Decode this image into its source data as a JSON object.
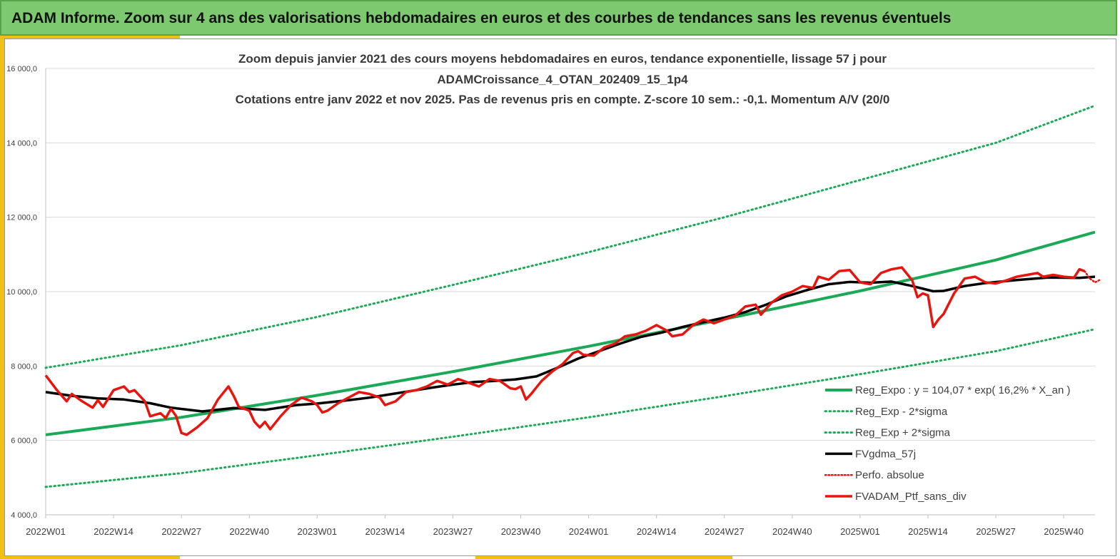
{
  "header": {
    "title": "ADAM Informe. Zoom sur 4 ans des valorisations hebdomadaires en euros et des courbes de tendances sans les revenus éventuels"
  },
  "chart_data": {
    "type": "line",
    "title_lines": [
      "Zoom depuis janvier 2021 des cours moyens hebdomadaires  en euros, tendance exponentielle, lissage 57 j pour",
      "ADAMCroissance_4_OTAN_202409_15_1p4",
      "Cotations  entre janv 2022 et nov 2025. Pas de revenus pris en compte. Z-score 10 sem.: -0,1. Momentum A/V (20/0"
    ],
    "x_tick_labels": [
      "2022W01",
      "2022W14",
      "2022W27",
      "2022W40",
      "2023W01",
      "2023W14",
      "2023W27",
      "2023W40",
      "2024W01",
      "2024W14",
      "2024W27",
      "2024W40",
      "2025W01",
      "2025W14",
      "2025W27",
      "2025W40"
    ],
    "x_tick_index": [
      0,
      13,
      26,
      39,
      52,
      65,
      78,
      91,
      104,
      117,
      130,
      143,
      156,
      169,
      182,
      195
    ],
    "week_count": 201,
    "y_tick_labels": [
      "4 000,0",
      "6 000,0",
      "8 000,0",
      "10 000,0",
      "12 000,0",
      "14 000,0",
      "16 000,0"
    ],
    "ylim": [
      4000,
      16000
    ],
    "grid": true,
    "legend_position": "bottom-right",
    "legend": [
      "Reg_Expo : y = 104,07 * exp( 16,2% *  X_an )",
      "Reg_Exp - 2*sigma",
      "Reg_Exp + 2*sigma",
      "FVgdma_57j",
      "Perfo. absolue",
      "FVADAM_Ptf_sans_div"
    ],
    "colors": {
      "trend": "#1aaa55",
      "gdma": "#000000",
      "ptf": "#e8140e",
      "perfo": "#e8140e"
    },
    "series": [
      {
        "key": "trend",
        "name": "Reg_Expo : y = 104,07 * exp( 16,2% *  X_an )",
        "points": [
          [
            0,
            6150
          ],
          [
            26,
            6620
          ],
          [
            52,
            7210
          ],
          [
            78,
            7850
          ],
          [
            104,
            8530
          ],
          [
            130,
            9260
          ],
          [
            156,
            10020
          ],
          [
            182,
            10850
          ],
          [
            201,
            11600
          ]
        ]
      },
      {
        "key": "minus",
        "name": "Reg_Exp - 2*sigma",
        "points": [
          [
            0,
            4750
          ],
          [
            26,
            5120
          ],
          [
            52,
            5600
          ],
          [
            78,
            6100
          ],
          [
            104,
            6620
          ],
          [
            130,
            7190
          ],
          [
            156,
            7780
          ],
          [
            182,
            8400
          ],
          [
            201,
            8990
          ]
        ]
      },
      {
        "key": "plus",
        "name": "Reg_Exp + 2*sigma",
        "points": [
          [
            0,
            7950
          ],
          [
            26,
            8560
          ],
          [
            52,
            9320
          ],
          [
            78,
            10180
          ],
          [
            104,
            11060
          ],
          [
            130,
            12000
          ],
          [
            156,
            13000
          ],
          [
            182,
            14000
          ],
          [
            201,
            15000
          ]
        ]
      },
      {
        "key": "gdma",
        "name": "FVgdma_57j",
        "points": [
          [
            0,
            7300
          ],
          [
            5,
            7200
          ],
          [
            10,
            7130
          ],
          [
            15,
            7100
          ],
          [
            20,
            7000
          ],
          [
            24,
            6880
          ],
          [
            30,
            6780
          ],
          [
            36,
            6870
          ],
          [
            42,
            6820
          ],
          [
            48,
            6950
          ],
          [
            52,
            6990
          ],
          [
            58,
            7080
          ],
          [
            62,
            7150
          ],
          [
            66,
            7240
          ],
          [
            70,
            7330
          ],
          [
            74,
            7420
          ],
          [
            78,
            7500
          ],
          [
            82,
            7570
          ],
          [
            86,
            7600
          ],
          [
            90,
            7640
          ],
          [
            94,
            7720
          ],
          [
            98,
            7950
          ],
          [
            102,
            8200
          ],
          [
            106,
            8400
          ],
          [
            110,
            8600
          ],
          [
            114,
            8780
          ],
          [
            118,
            8900
          ],
          [
            122,
            9050
          ],
          [
            126,
            9180
          ],
          [
            130,
            9300
          ],
          [
            134,
            9450
          ],
          [
            138,
            9650
          ],
          [
            142,
            9880
          ],
          [
            146,
            10050
          ],
          [
            150,
            10200
          ],
          [
            154,
            10260
          ],
          [
            158,
            10240
          ],
          [
            162,
            10270
          ],
          [
            166,
            10150
          ],
          [
            170,
            10010
          ],
          [
            172,
            10020
          ],
          [
            176,
            10150
          ],
          [
            180,
            10230
          ],
          [
            186,
            10310
          ],
          [
            192,
            10380
          ],
          [
            198,
            10370
          ],
          [
            201,
            10400
          ]
        ]
      },
      {
        "key": "ptf",
        "name": "FVADAM_Ptf_sans_div",
        "points": [
          [
            0,
            7750
          ],
          [
            2,
            7380
          ],
          [
            4,
            7050
          ],
          [
            5,
            7250
          ],
          [
            7,
            7050
          ],
          [
            9,
            6880
          ],
          [
            10,
            7080
          ],
          [
            11,
            6900
          ],
          [
            13,
            7350
          ],
          [
            15,
            7450
          ],
          [
            16,
            7300
          ],
          [
            17,
            7350
          ],
          [
            19,
            7050
          ],
          [
            20,
            6650
          ],
          [
            22,
            6730
          ],
          [
            23,
            6600
          ],
          [
            24,
            6850
          ],
          [
            25,
            6650
          ],
          [
            26,
            6200
          ],
          [
            27,
            6150
          ],
          [
            29,
            6350
          ],
          [
            31,
            6600
          ],
          [
            33,
            7100
          ],
          [
            35,
            7450
          ],
          [
            36,
            7200
          ],
          [
            37,
            6900
          ],
          [
            39,
            6800
          ],
          [
            40,
            6500
          ],
          [
            41,
            6350
          ],
          [
            42,
            6500
          ],
          [
            43,
            6300
          ],
          [
            45,
            6650
          ],
          [
            47,
            6950
          ],
          [
            49,
            7150
          ],
          [
            51,
            7050
          ],
          [
            52,
            6950
          ],
          [
            53,
            6750
          ],
          [
            54,
            6800
          ],
          [
            56,
            7000
          ],
          [
            58,
            7150
          ],
          [
            60,
            7300
          ],
          [
            62,
            7250
          ],
          [
            64,
            7150
          ],
          [
            65,
            6950
          ],
          [
            67,
            7050
          ],
          [
            69,
            7300
          ],
          [
            71,
            7350
          ],
          [
            73,
            7450
          ],
          [
            75,
            7600
          ],
          [
            77,
            7500
          ],
          [
            79,
            7650
          ],
          [
            81,
            7550
          ],
          [
            83,
            7450
          ],
          [
            85,
            7650
          ],
          [
            87,
            7600
          ],
          [
            89,
            7400
          ],
          [
            90,
            7380
          ],
          [
            91,
            7450
          ],
          [
            92,
            7100
          ],
          [
            93,
            7250
          ],
          [
            95,
            7600
          ],
          [
            97,
            7850
          ],
          [
            99,
            8050
          ],
          [
            101,
            8350
          ],
          [
            102,
            8400
          ],
          [
            103,
            8300
          ],
          [
            105,
            8280
          ],
          [
            107,
            8500
          ],
          [
            109,
            8600
          ],
          [
            111,
            8800
          ],
          [
            113,
            8850
          ],
          [
            115,
            8950
          ],
          [
            117,
            9100
          ],
          [
            119,
            8950
          ],
          [
            120,
            8800
          ],
          [
            122,
            8850
          ],
          [
            124,
            9100
          ],
          [
            126,
            9250
          ],
          [
            128,
            9150
          ],
          [
            130,
            9250
          ],
          [
            132,
            9350
          ],
          [
            134,
            9600
          ],
          [
            136,
            9650
          ],
          [
            137,
            9380
          ],
          [
            139,
            9700
          ],
          [
            141,
            9900
          ],
          [
            143,
            10000
          ],
          [
            145,
            10150
          ],
          [
            147,
            10100
          ],
          [
            148,
            10400
          ],
          [
            150,
            10320
          ],
          [
            152,
            10550
          ],
          [
            154,
            10580
          ],
          [
            156,
            10250
          ],
          [
            158,
            10200
          ],
          [
            160,
            10500
          ],
          [
            162,
            10600
          ],
          [
            164,
            10650
          ],
          [
            166,
            10300
          ],
          [
            167,
            9850
          ],
          [
            168,
            9950
          ],
          [
            169,
            9900
          ],
          [
            170,
            9050
          ],
          [
            171,
            9250
          ],
          [
            172,
            9400
          ],
          [
            174,
            9950
          ],
          [
            176,
            10350
          ],
          [
            178,
            10400
          ],
          [
            180,
            10250
          ],
          [
            182,
            10220
          ],
          [
            184,
            10300
          ],
          [
            186,
            10400
          ],
          [
            188,
            10450
          ],
          [
            190,
            10500
          ],
          [
            191,
            10400
          ],
          [
            193,
            10450
          ],
          [
            195,
            10400
          ],
          [
            197,
            10380
          ],
          [
            198,
            10600
          ],
          [
            199,
            10550
          ]
        ]
      },
      {
        "key": "perfo",
        "name": "Perfo. absolue",
        "points": [
          [
            199,
            10550
          ],
          [
            200,
            10350
          ],
          [
            201,
            10250
          ],
          [
            202,
            10320
          ]
        ]
      }
    ]
  }
}
